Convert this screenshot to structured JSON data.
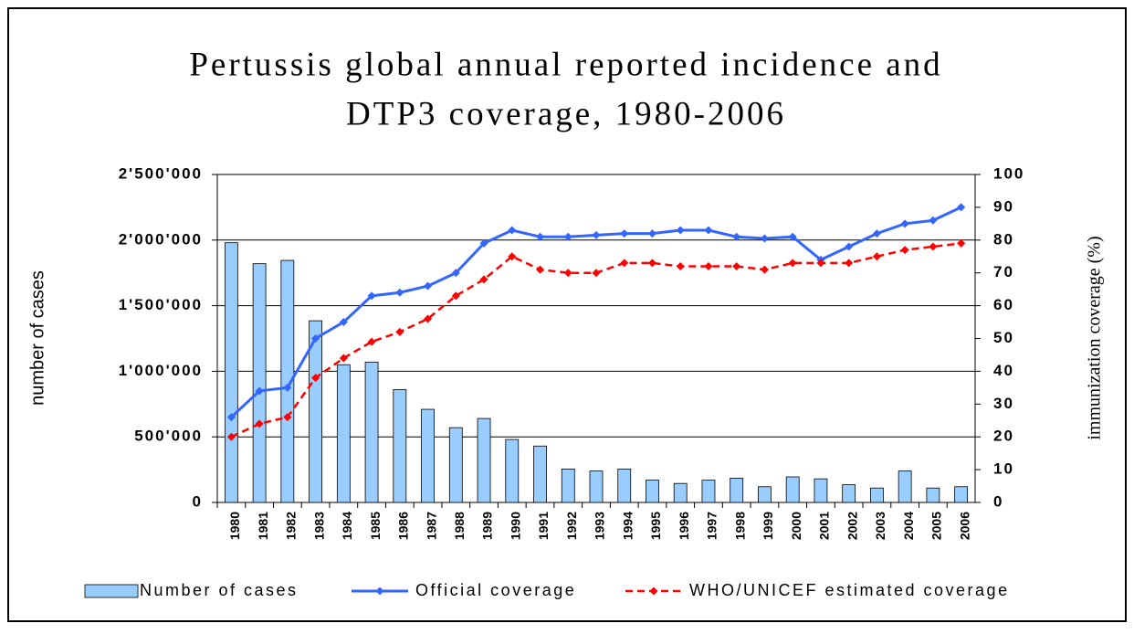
{
  "chart_data": {
    "type": "bar-line",
    "title": [
      "Pertussis global annual reported incidence and",
      "DTP3 coverage, 1980-2006"
    ],
    "y_label": "number of cases",
    "y2_label": "immunization coverage (%)",
    "categories": [
      "1980",
      "1981",
      "1982",
      "1983",
      "1984",
      "1985",
      "1986",
      "1987",
      "1988",
      "1989",
      "1990",
      "1991",
      "1992",
      "1993",
      "1994",
      "1995",
      "1996",
      "1997",
      "1998",
      "1999",
      "2000",
      "2001",
      "2002",
      "2003",
      "2004",
      "2005",
      "2006"
    ],
    "series": [
      {
        "name": "Number of cases",
        "color": "#99ccff",
        "kind": "bar",
        "axis": "y",
        "values": [
          1980000,
          1820000,
          1845000,
          1385000,
          1050000,
          1070000,
          860000,
          710000,
          570000,
          640000,
          480000,
          430000,
          255000,
          240000,
          255000,
          170000,
          145000,
          170000,
          185000,
          120000,
          195000,
          180000,
          135000,
          110000,
          240000,
          110000,
          120000
        ]
      },
      {
        "name": "Official coverage",
        "color": "#3366ff",
        "kind": "line",
        "dash": false,
        "axis": "y2",
        "values": [
          26,
          34,
          35,
          50,
          55,
          63,
          64,
          66,
          70,
          79,
          83,
          81,
          81,
          81.5,
          82,
          82,
          83,
          83,
          81,
          80.5,
          81,
          74,
          78,
          82,
          85,
          86,
          90
        ]
      },
      {
        "name": "WHO/UNICEF estimated coverage",
        "color": "#ff0000",
        "kind": "line",
        "dash": true,
        "axis": "y2",
        "values": [
          20,
          24,
          26,
          38,
          44,
          49,
          52,
          56,
          63,
          68,
          75,
          71,
          70,
          70,
          73,
          73,
          72,
          72,
          72,
          71,
          73,
          73,
          73,
          75,
          77,
          78,
          79
        ]
      }
    ],
    "ylim": [
      0,
      2500000
    ],
    "yticks": [
      0,
      {
        "value": 500000,
        "label": "500'000"
      },
      {
        "value": 1000000,
        "label": "1'000'000"
      },
      {
        "value": 1500000,
        "label": "1'500'000"
      },
      {
        "value": 2000000,
        "label": "2'000'000"
      },
      {
        "value": 2500000,
        "label": "2'500'000"
      }
    ],
    "y2lim": [
      0,
      100
    ],
    "y2ticks": [
      0,
      10,
      20,
      30,
      40,
      50,
      60,
      70,
      80,
      90,
      100
    ],
    "grid": true,
    "legend": "bottom"
  }
}
